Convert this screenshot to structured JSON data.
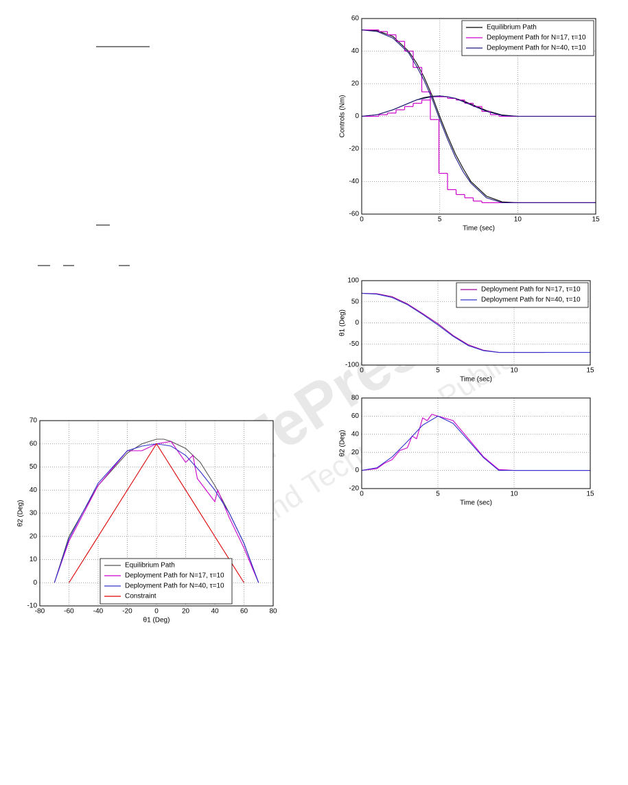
{
  "chart_data": [
    {
      "type": "line",
      "xlabel": "Time (sec)",
      "ylabel": "Controls (Nm)",
      "xlim": [
        0,
        15
      ],
      "xticks": [
        0,
        5,
        10,
        15
      ],
      "ylim": [
        -60,
        60
      ],
      "yticks": [
        -60,
        -40,
        -20,
        0,
        20,
        40,
        60
      ],
      "grid": true,
      "legend": "upper right",
      "series": [
        {
          "name": "Equilibrium Path",
          "color": "#000000",
          "x": [
            0,
            1,
            2,
            3,
            3.5,
            4,
            4.5,
            5,
            5.5,
            6,
            6.5,
            7,
            8,
            9,
            10,
            15,
            null,
            0,
            1,
            2,
            3,
            3.5,
            4,
            4.5,
            5,
            5.5,
            6,
            6.5,
            7,
            8,
            9,
            10,
            15
          ],
          "values": [
            53,
            52.5,
            49,
            40,
            33,
            24,
            13,
            0,
            -12,
            -23,
            -32,
            -40,
            -49,
            -52.5,
            -53,
            -53,
            null,
            0,
            1,
            4,
            8,
            10,
            11.5,
            12.3,
            12.5,
            12,
            11,
            9.5,
            7.5,
            3.5,
            0.8,
            0,
            0
          ]
        },
        {
          "name": "Deployment Path for N=17, τ=10",
          "color": "#cc00cc",
          "step": true,
          "x": [
            0,
            0.55,
            1.1,
            1.65,
            2.2,
            2.75,
            3.3,
            3.85,
            4.4,
            4.95,
            5.5,
            6.05,
            6.6,
            7.15,
            7.7,
            8.25,
            8.8,
            9.35,
            null,
            0,
            0.55,
            1.1,
            1.65,
            2.2,
            2.75,
            3.3,
            3.85,
            4.4,
            4.95,
            5.5,
            6.05,
            6.6,
            7.15,
            7.7,
            8.25,
            8.8,
            9.35
          ],
          "values": [
            53,
            53,
            52,
            50,
            46,
            40,
            30,
            15,
            -2,
            -35,
            -45,
            -48,
            -50,
            -52,
            -53,
            -53,
            -53,
            -53,
            null,
            0,
            0,
            1,
            2,
            4,
            6,
            8,
            10,
            12,
            12,
            11,
            10,
            8,
            6,
            3,
            1,
            0,
            0
          ]
        },
        {
          "name": "Deployment Path for N=40, τ=10",
          "color": "#1a1a80",
          "x": [
            0,
            1,
            2,
            3,
            3.5,
            4,
            4.5,
            5,
            5.5,
            6,
            6.5,
            7,
            8,
            9,
            10,
            15,
            null,
            0,
            1,
            2,
            3,
            3.5,
            4,
            4.5,
            5,
            5.5,
            6,
            6.5,
            7,
            8,
            9,
            10,
            15
          ],
          "values": [
            53,
            52,
            48,
            39,
            31,
            22,
            11,
            -2,
            -14,
            -25,
            -34,
            -41,
            -50,
            -53,
            -53,
            -53,
            null,
            0,
            1,
            4,
            8,
            10,
            11,
            12,
            12.5,
            12,
            11,
            9,
            7,
            3,
            0.5,
            0,
            0
          ]
        }
      ]
    },
    {
      "type": "line",
      "xlabel": "Time (sec)",
      "ylabel": "θ1 (Deg)",
      "xlim": [
        0,
        15
      ],
      "xticks": [
        0,
        5,
        10,
        15
      ],
      "ylim": [
        -100,
        100
      ],
      "yticks": [
        -100,
        -50,
        0,
        50,
        100
      ],
      "grid": true,
      "legend": "upper right",
      "series": [
        {
          "name": "Deployment Path for N=17, τ=10",
          "color": "#990099",
          "x": [
            0,
            1,
            2,
            3,
            4,
            5,
            6,
            7,
            8,
            9,
            10,
            12
          ],
          "values": [
            70,
            69,
            62,
            45,
            22,
            -2,
            -30,
            -52,
            -65,
            -70,
            -70,
            -70
          ]
        },
        {
          "name": "Deployment Path for N=40, τ=10",
          "color": "#3333cc",
          "x": [
            0,
            1,
            2,
            3,
            4,
            5,
            6,
            7,
            8,
            9,
            10,
            15
          ],
          "values": [
            70,
            68,
            60,
            43,
            20,
            -5,
            -32,
            -54,
            -66,
            -70,
            -70,
            -70
          ]
        }
      ]
    },
    {
      "type": "line",
      "xlabel": "Time (sec)",
      "ylabel": "θ2 (Deg)",
      "xlim": [
        0,
        15
      ],
      "xticks": [
        0,
        5,
        10,
        15
      ],
      "ylim": [
        -20,
        80
      ],
      "yticks": [
        -20,
        0,
        20,
        40,
        60,
        80
      ],
      "grid": true,
      "series": [
        {
          "color": "#cc00cc",
          "x": [
            0,
            1,
            1.5,
            2,
            2.5,
            3,
            3.3,
            3.6,
            4,
            4.3,
            4.6,
            5,
            6,
            7,
            8,
            9,
            10,
            15
          ],
          "values": [
            0,
            2,
            8,
            12,
            22,
            25,
            38,
            35,
            58,
            55,
            62,
            60,
            55,
            35,
            15,
            1,
            0,
            0
          ]
        },
        {
          "color": "#3333cc",
          "x": [
            0,
            1,
            2,
            3,
            4,
            5,
            6,
            7,
            8,
            9,
            10,
            15
          ],
          "values": [
            0,
            3,
            15,
            32,
            50,
            60,
            52,
            33,
            14,
            0,
            0,
            0
          ]
        }
      ]
    },
    {
      "type": "line",
      "xlabel": "θ1 (Deg)",
      "ylabel": "θ2 (Deg)",
      "xlim": [
        -80,
        80
      ],
      "xticks": [
        -80,
        -60,
        -40,
        -20,
        0,
        20,
        40,
        60,
        80
      ],
      "ylim": [
        -10,
        70
      ],
      "yticks": [
        -10,
        0,
        10,
        20,
        30,
        40,
        50,
        60,
        70
      ],
      "grid": true,
      "legend": "lower center",
      "series": [
        {
          "name": "Equilibrium Path",
          "color": "#555555",
          "x": [
            -70,
            -60,
            -40,
            -20,
            -10,
            0,
            5,
            10,
            20,
            30,
            40,
            50,
            60,
            70
          ],
          "values": [
            0,
            20,
            42,
            56,
            60,
            62,
            62,
            61,
            58,
            52,
            42,
            30,
            17,
            0
          ]
        },
        {
          "name": "Deployment Path for N=17, τ=10",
          "color": "#cc00cc",
          "x": [
            -70,
            -60,
            -40,
            -20,
            -10,
            0,
            10,
            20,
            25,
            28,
            40,
            42,
            50,
            60,
            70
          ],
          "values": [
            0,
            18,
            42,
            57,
            57,
            60,
            61,
            52,
            55,
            45,
            35,
            40,
            28,
            15,
            0
          ]
        },
        {
          "name": "Deployment Path for N=40, τ=10",
          "color": "#3333cc",
          "x": [
            -70,
            -60,
            -40,
            -20,
            -10,
            0,
            10,
            20,
            30,
            40,
            50,
            60,
            70
          ],
          "values": [
            0,
            19,
            43,
            57,
            59,
            60,
            59,
            55,
            48,
            40,
            30,
            17,
            0
          ]
        },
        {
          "name": "Constraint",
          "color": "#dd0000",
          "x": [
            -60,
            0,
            60
          ],
          "values": [
            0,
            60,
            0
          ]
        }
      ]
    }
  ],
  "watermark": {
    "line1": "SciTePress",
    "line2": "Science and Technology Publications"
  }
}
